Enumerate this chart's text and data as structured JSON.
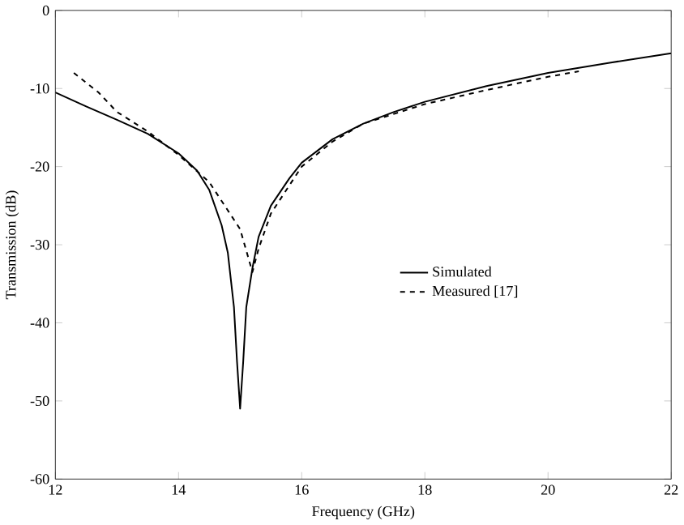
{
  "chart_data": {
    "type": "line",
    "xlabel": "Frequency (GHz)",
    "ylabel": "Transmission (dB)",
    "xlim": [
      12,
      22
    ],
    "ylim": [
      -60,
      0
    ],
    "xticks": [
      12,
      14,
      16,
      18,
      20,
      22
    ],
    "yticks": [
      -60,
      -50,
      -40,
      -30,
      -20,
      -10,
      0
    ],
    "legend": "right",
    "grid": false,
    "series": [
      {
        "name": "Simulated",
        "color": "#000000",
        "line_style": "solid",
        "x": [
          12,
          12.5,
          13,
          13.5,
          14,
          14.3,
          14.5,
          14.7,
          14.8,
          14.9,
          14.95,
          15.0,
          15.05,
          15.1,
          15.2,
          15.3,
          15.5,
          15.8,
          16,
          16.5,
          17,
          17.5,
          18,
          19,
          20,
          21,
          22
        ],
        "values": [
          -10.5,
          -12.3,
          -14,
          -15.8,
          -18.3,
          -20.5,
          -23,
          -27.5,
          -31,
          -38,
          -45,
          -51,
          -45,
          -38,
          -33,
          -29,
          -25,
          -21.5,
          -19.5,
          -16.5,
          -14.5,
          -13,
          -11.7,
          -9.7,
          -8,
          -6.7,
          -5.5
        ]
      },
      {
        "name": "Measured [17]",
        "color": "#000000",
        "line_style": "dashed",
        "x": [
          12.3,
          12.7,
          13,
          13.5,
          14,
          14.5,
          15,
          15.2,
          15.3,
          15.5,
          16,
          16.5,
          17,
          18,
          19,
          20,
          20.5
        ],
        "values": [
          -8,
          -10.5,
          -13,
          -15.5,
          -18.5,
          -22,
          -28,
          -33.5,
          -30.5,
          -26,
          -20,
          -16.8,
          -14.5,
          -12,
          -10.2,
          -8.5,
          -7.8
        ]
      }
    ]
  }
}
